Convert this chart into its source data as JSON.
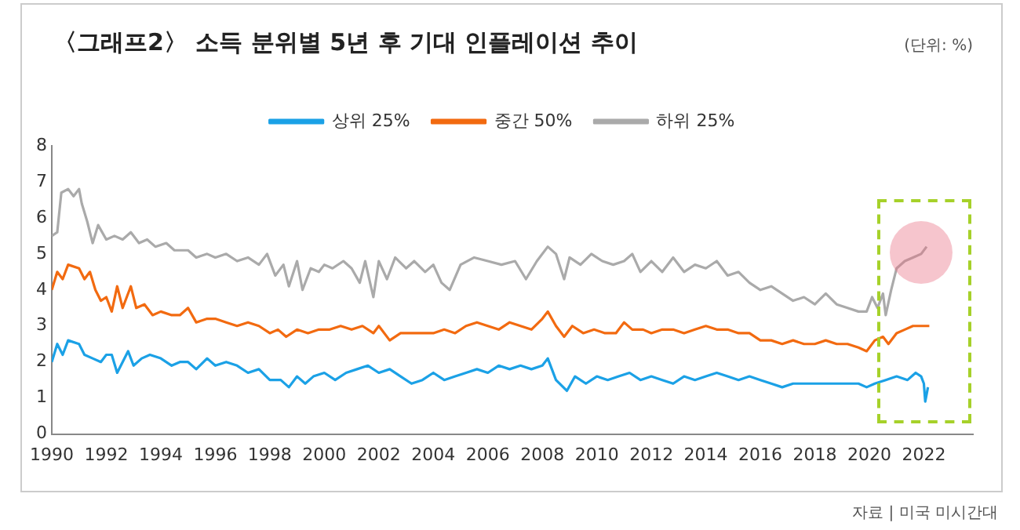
{
  "chart_data": {
    "type": "line",
    "title": "〈그래프2〉 소득 분위별 5년 후 기대 인플레이션 추이",
    "annotations": [
      "(단위: %)",
      "자료 | 미국 미시간대"
    ],
    "xlim": [
      1990,
      2023.8
    ],
    "xticks": [
      1990,
      1992,
      1994,
      1996,
      1998,
      2000,
      2002,
      2004,
      2006,
      2008,
      2010,
      2012,
      2014,
      2016,
      2018,
      2020,
      2022
    ],
    "ylim": [
      0,
      8
    ],
    "yticks": [
      0,
      1,
      2,
      3,
      4,
      5,
      6,
      7,
      8
    ],
    "grid": false,
    "legend": "top",
    "marker": "none",
    "line_style": "solid",
    "series": [
      {
        "name": "상위 25%",
        "color": "#1ba1e6",
        "x": [
          1990.0,
          1990.2,
          1990.4,
          1990.6,
          1991.0,
          1991.2,
          1991.5,
          1991.8,
          1992.0,
          1992.2,
          1992.4,
          1992.8,
          1993.0,
          1993.3,
          1993.6,
          1994.0,
          1994.4,
          1994.7,
          1995.0,
          1995.3,
          1995.7,
          1996.0,
          1996.4,
          1996.8,
          1997.2,
          1997.6,
          1998.0,
          1998.4,
          1998.7,
          1999.0,
          1999.3,
          1999.6,
          2000.0,
          2000.4,
          2000.8,
          2001.2,
          2001.6,
          2002.0,
          2002.4,
          2002.8,
          2003.2,
          2003.6,
          2004.0,
          2004.4,
          2004.8,
          2005.2,
          2005.6,
          2006.0,
          2006.4,
          2006.8,
          2007.2,
          2007.6,
          2008.0,
          2008.2,
          2008.5,
          2008.9,
          2009.2,
          2009.6,
          2010.0,
          2010.4,
          2010.8,
          2011.2,
          2011.6,
          2012.0,
          2012.4,
          2012.8,
          2013.2,
          2013.6,
          2014.0,
          2014.4,
          2014.8,
          2015.2,
          2015.6,
          2016.0,
          2016.4,
          2016.8,
          2017.2,
          2017.6,
          2018.0,
          2018.4,
          2018.8,
          2019.2,
          2019.6,
          2019.9,
          2020.2,
          2020.6,
          2021.0,
          2021.4,
          2021.7,
          2021.9,
          2022.0,
          2022.05,
          2022.15
        ],
        "values": [
          2.0,
          2.5,
          2.2,
          2.6,
          2.5,
          2.2,
          2.1,
          2.0,
          2.2,
          2.2,
          1.7,
          2.3,
          1.9,
          2.1,
          2.2,
          2.1,
          1.9,
          2.0,
          2.0,
          1.8,
          2.1,
          1.9,
          2.0,
          1.9,
          1.7,
          1.8,
          1.5,
          1.5,
          1.3,
          1.6,
          1.4,
          1.6,
          1.7,
          1.5,
          1.7,
          1.8,
          1.9,
          1.7,
          1.8,
          1.6,
          1.4,
          1.5,
          1.7,
          1.5,
          1.6,
          1.7,
          1.8,
          1.7,
          1.9,
          1.8,
          1.9,
          1.8,
          1.9,
          2.1,
          1.5,
          1.2,
          1.6,
          1.4,
          1.6,
          1.5,
          1.6,
          1.7,
          1.5,
          1.6,
          1.5,
          1.4,
          1.6,
          1.5,
          1.6,
          1.7,
          1.6,
          1.5,
          1.6,
          1.5,
          1.4,
          1.3,
          1.4,
          1.4,
          1.4,
          1.4,
          1.4,
          1.4,
          1.4,
          1.3,
          1.4,
          1.5,
          1.6,
          1.5,
          1.7,
          1.6,
          1.4,
          0.9,
          1.3
        ]
      },
      {
        "name": "중간 50%",
        "color": "#f26a10",
        "x": [
          1990.0,
          1990.2,
          1990.4,
          1990.6,
          1991.0,
          1991.2,
          1991.4,
          1991.6,
          1991.8,
          1992.0,
          1992.2,
          1992.4,
          1992.6,
          1992.9,
          1993.1,
          1993.4,
          1993.7,
          1994.0,
          1994.4,
          1994.7,
          1995.0,
          1995.3,
          1995.7,
          1996.0,
          1996.4,
          1996.8,
          1997.2,
          1997.6,
          1998.0,
          1998.3,
          1998.6,
          1999.0,
          1999.4,
          1999.8,
          2000.2,
          2000.6,
          2001.0,
          2001.4,
          2001.8,
          2002.0,
          2002.4,
          2002.8,
          2003.2,
          2003.6,
          2004.0,
          2004.4,
          2004.8,
          2005.2,
          2005.6,
          2006.0,
          2006.4,
          2006.8,
          2007.2,
          2007.6,
          2008.0,
          2008.2,
          2008.5,
          2008.8,
          2009.1,
          2009.5,
          2009.9,
          2010.3,
          2010.7,
          2011.0,
          2011.3,
          2011.7,
          2012.0,
          2012.4,
          2012.8,
          2013.2,
          2013.6,
          2014.0,
          2014.4,
          2014.8,
          2015.2,
          2015.6,
          2016.0,
          2016.4,
          2016.8,
          2017.2,
          2017.6,
          2018.0,
          2018.4,
          2018.8,
          2019.2,
          2019.6,
          2019.9,
          2020.2,
          2020.5,
          2020.7,
          2021.0,
          2021.3,
          2021.6,
          2021.9,
          2022.2
        ],
        "values": [
          4.0,
          4.5,
          4.3,
          4.7,
          4.6,
          4.3,
          4.5,
          4.0,
          3.7,
          3.8,
          3.4,
          4.1,
          3.5,
          4.1,
          3.5,
          3.6,
          3.3,
          3.4,
          3.3,
          3.3,
          3.5,
          3.1,
          3.2,
          3.2,
          3.1,
          3.0,
          3.1,
          3.0,
          2.8,
          2.9,
          2.7,
          2.9,
          2.8,
          2.9,
          2.9,
          3.0,
          2.9,
          3.0,
          2.8,
          3.0,
          2.6,
          2.8,
          2.8,
          2.8,
          2.8,
          2.9,
          2.8,
          3.0,
          3.1,
          3.0,
          2.9,
          3.1,
          3.0,
          2.9,
          3.2,
          3.4,
          3.0,
          2.7,
          3.0,
          2.8,
          2.9,
          2.8,
          2.8,
          3.1,
          2.9,
          2.9,
          2.8,
          2.9,
          2.9,
          2.8,
          2.9,
          3.0,
          2.9,
          2.9,
          2.8,
          2.8,
          2.6,
          2.6,
          2.5,
          2.6,
          2.5,
          2.5,
          2.6,
          2.5,
          2.5,
          2.4,
          2.3,
          2.6,
          2.7,
          2.5,
          2.8,
          2.9,
          3.0,
          3.0,
          3.0
        ]
      },
      {
        "name": "하위 25%",
        "color": "#aaaaaa",
        "x": [
          1990.0,
          1990.2,
          1990.35,
          1990.6,
          1990.8,
          1991.0,
          1991.1,
          1991.3,
          1991.5,
          1991.7,
          1992.0,
          1992.3,
          1992.6,
          1992.9,
          1993.2,
          1993.5,
          1993.8,
          1994.2,
          1994.5,
          1995.0,
          1995.3,
          1995.7,
          1996.0,
          1996.4,
          1996.8,
          1997.2,
          1997.6,
          1997.9,
          1998.2,
          1998.5,
          1998.7,
          1999.0,
          1999.2,
          1999.5,
          1999.8,
          2000.0,
          2000.3,
          2000.7,
          2001.0,
          2001.3,
          2001.5,
          2001.8,
          2002.0,
          2002.3,
          2002.6,
          2003.0,
          2003.3,
          2003.7,
          2004.0,
          2004.3,
          2004.6,
          2005.0,
          2005.5,
          2006.0,
          2006.5,
          2007.0,
          2007.4,
          2007.8,
          2008.2,
          2008.5,
          2008.8,
          2009.0,
          2009.4,
          2009.8,
          2010.2,
          2010.6,
          2011.0,
          2011.3,
          2011.6,
          2012.0,
          2012.4,
          2012.8,
          2013.2,
          2013.6,
          2014.0,
          2014.4,
          2014.8,
          2015.2,
          2015.6,
          2016.0,
          2016.4,
          2016.8,
          2017.2,
          2017.6,
          2018.0,
          2018.4,
          2018.8,
          2019.2,
          2019.6,
          2019.9,
          2020.1,
          2020.3,
          2020.5,
          2020.6,
          2020.8,
          2021.0,
          2021.3,
          2021.6,
          2021.9,
          2022.1
        ],
        "values": [
          5.5,
          5.6,
          6.7,
          6.8,
          6.6,
          6.8,
          6.4,
          5.9,
          5.3,
          5.8,
          5.4,
          5.5,
          5.4,
          5.6,
          5.3,
          5.4,
          5.2,
          5.3,
          5.1,
          5.1,
          4.9,
          5.0,
          4.9,
          5.0,
          4.8,
          4.9,
          4.7,
          5.0,
          4.4,
          4.7,
          4.1,
          4.8,
          4.0,
          4.6,
          4.5,
          4.7,
          4.6,
          4.8,
          4.6,
          4.2,
          4.8,
          3.8,
          4.8,
          4.3,
          4.9,
          4.6,
          4.8,
          4.5,
          4.7,
          4.2,
          4.0,
          4.7,
          4.9,
          4.8,
          4.7,
          4.8,
          4.3,
          4.8,
          5.2,
          5.0,
          4.3,
          4.9,
          4.7,
          5.0,
          4.8,
          4.7,
          4.8,
          5.0,
          4.5,
          4.8,
          4.5,
          4.9,
          4.5,
          4.7,
          4.6,
          4.8,
          4.4,
          4.5,
          4.2,
          4.0,
          4.1,
          3.9,
          3.7,
          3.8,
          3.6,
          3.9,
          3.6,
          3.5,
          3.4,
          3.4,
          3.8,
          3.5,
          3.9,
          3.3,
          4.0,
          4.6,
          4.8,
          4.9,
          5.0,
          5.2
        ]
      }
    ]
  }
}
